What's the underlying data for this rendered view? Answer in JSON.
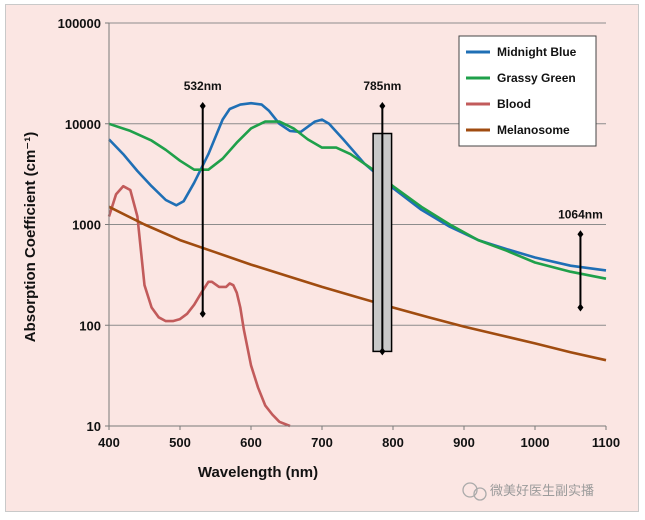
{
  "chart_data": {
    "type": "line",
    "xlabel": "Wavelength (nm)",
    "ylabel": "Absorption Coefficient (cm⁻¹)",
    "xlim": [
      400,
      1100
    ],
    "ylim": [
      10,
      100000
    ],
    "yscale": "log",
    "grid": "horizontal",
    "legend_position": "top-right",
    "x_ticks": [
      "400",
      "500",
      "600",
      "700",
      "800",
      "900",
      "1000",
      "1100"
    ],
    "y_ticks": [
      "10",
      "100",
      "1000",
      "10000",
      "100000"
    ],
    "series": [
      {
        "name": "Midnight Blue",
        "color": "#1f6fb5",
        "x": [
          400,
          420,
          440,
          460,
          480,
          495,
          505,
          520,
          540,
          560,
          570,
          585,
          600,
          615,
          625,
          640,
          655,
          670,
          690,
          700,
          710,
          730,
          760,
          800,
          840,
          880,
          920,
          960,
          1000,
          1050,
          1100
        ],
        "y": [
          7000,
          5000,
          3400,
          2400,
          1750,
          1550,
          1700,
          2600,
          5000,
          11000,
          14000,
          15500,
          16000,
          15500,
          13500,
          10000,
          8500,
          8300,
          10500,
          11000,
          10000,
          7000,
          4000,
          2300,
          1400,
          950,
          700,
          570,
          470,
          390,
          350
        ]
      },
      {
        "name": "Grassy Green",
        "color": "#1fa04a",
        "x": [
          400,
          430,
          460,
          480,
          500,
          520,
          540,
          560,
          580,
          600,
          620,
          640,
          660,
          680,
          700,
          720,
          740,
          760,
          780,
          800,
          840,
          880,
          920,
          960,
          1000,
          1050,
          1100
        ],
        "y": [
          10000,
          8500,
          6800,
          5500,
          4300,
          3500,
          3500,
          4500,
          6500,
          9000,
          10500,
          10500,
          9000,
          7000,
          5800,
          5800,
          5000,
          4000,
          3200,
          2400,
          1500,
          1000,
          700,
          550,
          420,
          340,
          290
        ]
      },
      {
        "name": "Blood",
        "color": "#c25b5b",
        "x": [
          400,
          410,
          420,
          430,
          440,
          450,
          460,
          470,
          480,
          490,
          500,
          510,
          520,
          530,
          540,
          545,
          555,
          565,
          570,
          575,
          580,
          585,
          590,
          600,
          610,
          620,
          630,
          640,
          655
        ],
        "y": [
          1200,
          2000,
          2400,
          2200,
          1200,
          250,
          150,
          120,
          110,
          110,
          115,
          130,
          160,
          210,
          270,
          270,
          240,
          240,
          260,
          250,
          210,
          150,
          90,
          40,
          24,
          16,
          13,
          11,
          10
        ]
      },
      {
        "name": "Melanosome",
        "color": "#a04c10",
        "x": [
          400,
          450,
          500,
          550,
          600,
          650,
          700,
          750,
          800,
          850,
          900,
          950,
          1000,
          1050,
          1100
        ],
        "y": [
          1500,
          1000,
          700,
          530,
          400,
          310,
          240,
          190,
          150,
          120,
          97,
          80,
          66,
          54,
          45
        ]
      }
    ],
    "annotations": [
      {
        "label": "532nm",
        "x": 532,
        "y_range": [
          130,
          15000
        ]
      },
      {
        "label": "785nm",
        "x": 785,
        "y_range": [
          55,
          15000
        ],
        "band": [
          772,
          798
        ],
        "band_y_range": [
          55,
          8000
        ]
      },
      {
        "label": "1064nm",
        "x": 1064,
        "y_range": [
          150,
          800
        ]
      }
    ]
  },
  "watermark": "微美好医生副实播"
}
